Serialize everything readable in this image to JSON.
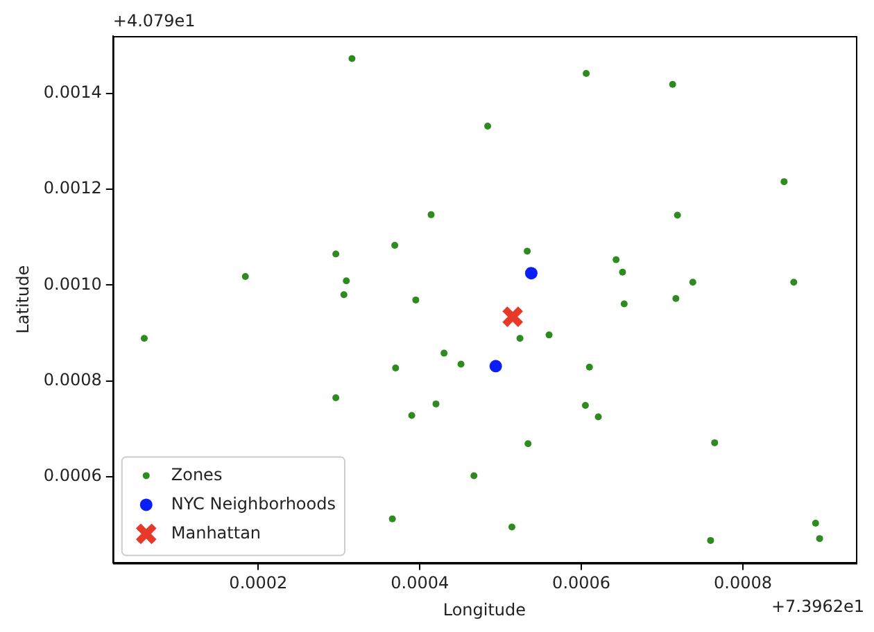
{
  "chart_data": {
    "type": "scatter",
    "xlabel": "Longitude",
    "ylabel": "Latitude",
    "xlim": [
      2e-05,
      0.00094
    ],
    "xticks": [
      0.0002,
      0.0004,
      0.0006,
      0.0008
    ],
    "ylim": [
      0.00042,
      0.00152
    ],
    "yticks": [
      0.0006,
      0.0008,
      {
        "value": 0.001,
        "label": "0.0010"
      },
      0.0012,
      0.0014
    ],
    "grid": false,
    "legend": "bottom left",
    "annotations": [
      "+4.079e1",
      "+7.3962e1"
    ],
    "series": [
      {
        "name": "Zones",
        "color": "#2e8b1f",
        "marker": "circle",
        "x": [
          0.000316,
          0.000484,
          0.000414,
          0.000369,
          0.000296,
          0.000184,
          0.000309,
          0.000306,
          0.000395,
          0.000606,
          0.000713,
          0.000851,
          0.000719,
          0.000533,
          0.000643,
          0.000651,
          0.000738,
          0.000863,
          0.000653,
          0.000717,
          5.88e-05,
          0.00043,
          0.00037,
          0.000451,
          0.000296,
          0.00042,
          0.00039,
          0.000467,
          0.000366,
          0.000524,
          0.00056,
          0.00061,
          0.000605,
          0.000621,
          0.000534,
          0.000765,
          0.000514,
          0.00089,
          0.000895,
          0.00076
        ],
        "values": [
          0.001473,
          0.001332,
          0.001147,
          0.001083,
          0.001065,
          0.001018,
          0.001009,
          0.00098,
          0.000969,
          0.001442,
          0.001419,
          0.001216,
          0.001146,
          0.001071,
          0.001053,
          0.001027,
          0.001006,
          0.001006,
          0.000961,
          0.000972,
          0.000889,
          0.000858,
          0.000827,
          0.000835,
          0.000765,
          0.000752,
          0.000728,
          0.000602,
          0.000512,
          0.000889,
          0.000896,
          0.000829,
          0.000749,
          0.000725,
          0.000669,
          0.000671,
          0.000495,
          0.000503,
          0.000471,
          0.000467
        ]
      },
      {
        "name": "NYC Neighborhoods",
        "color": "#0a1ff5",
        "marker": "circle",
        "x": [
          0.000538,
          0.000494
        ],
        "values": [
          0.001025,
          0.000831
        ]
      },
      {
        "name": "Manhattan",
        "color": "#e8382a",
        "marker": "cross",
        "x": [
          0.000515
        ],
        "values": [
          0.000934
        ]
      }
    ]
  }
}
